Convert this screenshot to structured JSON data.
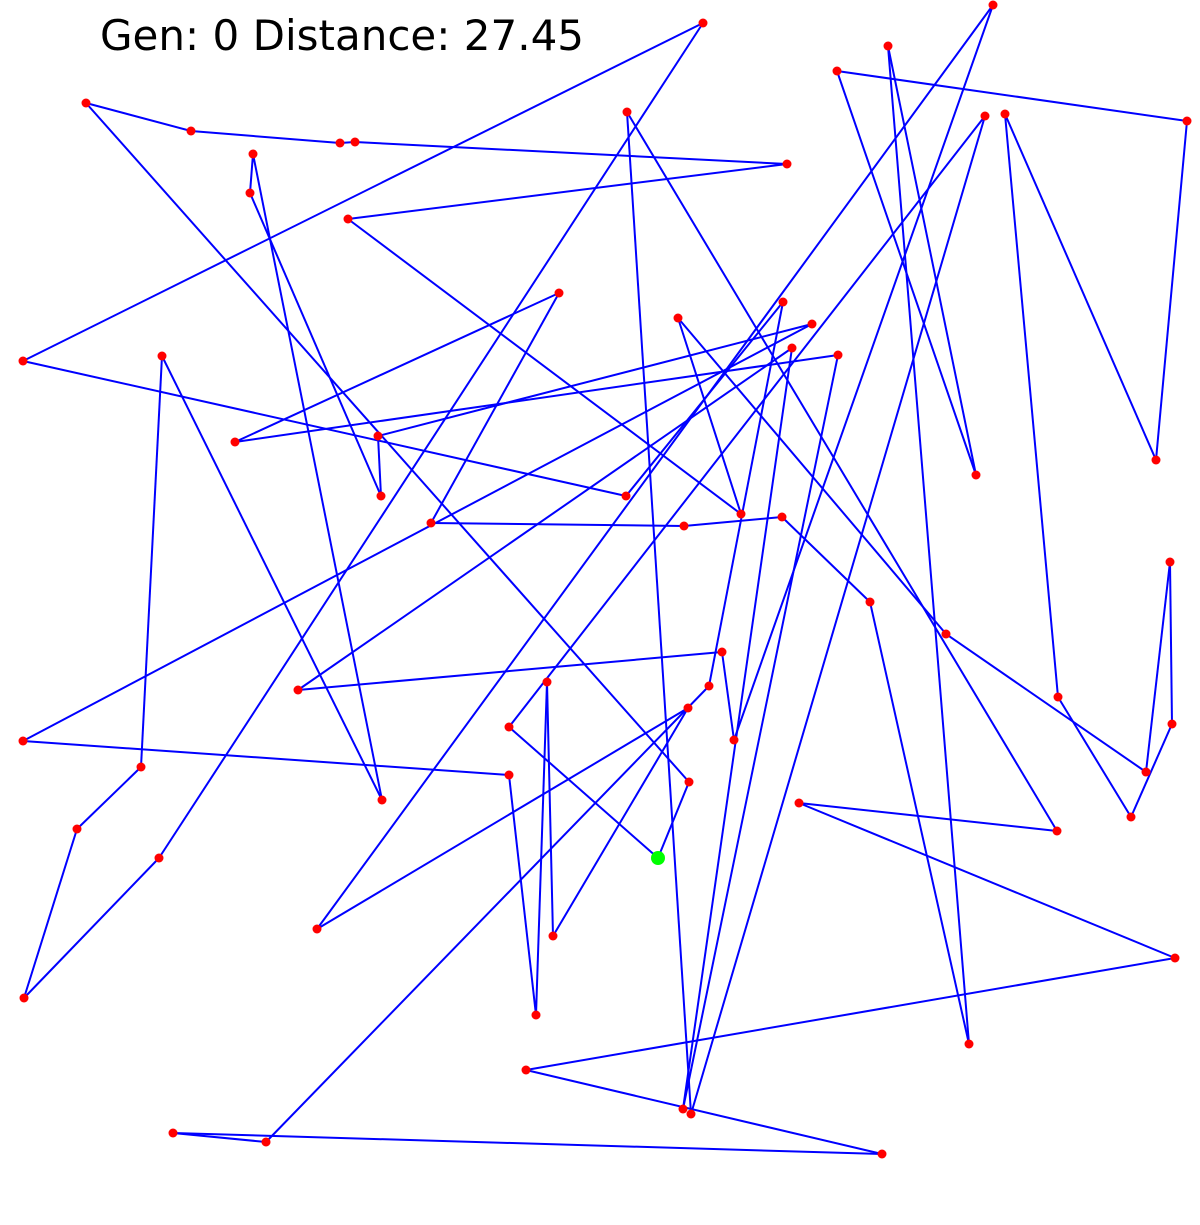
{
  "status": {
    "gen_label": "Gen:",
    "gen_value": "0",
    "distance_label": "Distance:",
    "distance_value": "27.45"
  },
  "colors": {
    "background": "#ffffff",
    "route": "#0000ff",
    "city": "#ff0000",
    "start_city": "#00ff00",
    "text": "#000000"
  }
}
